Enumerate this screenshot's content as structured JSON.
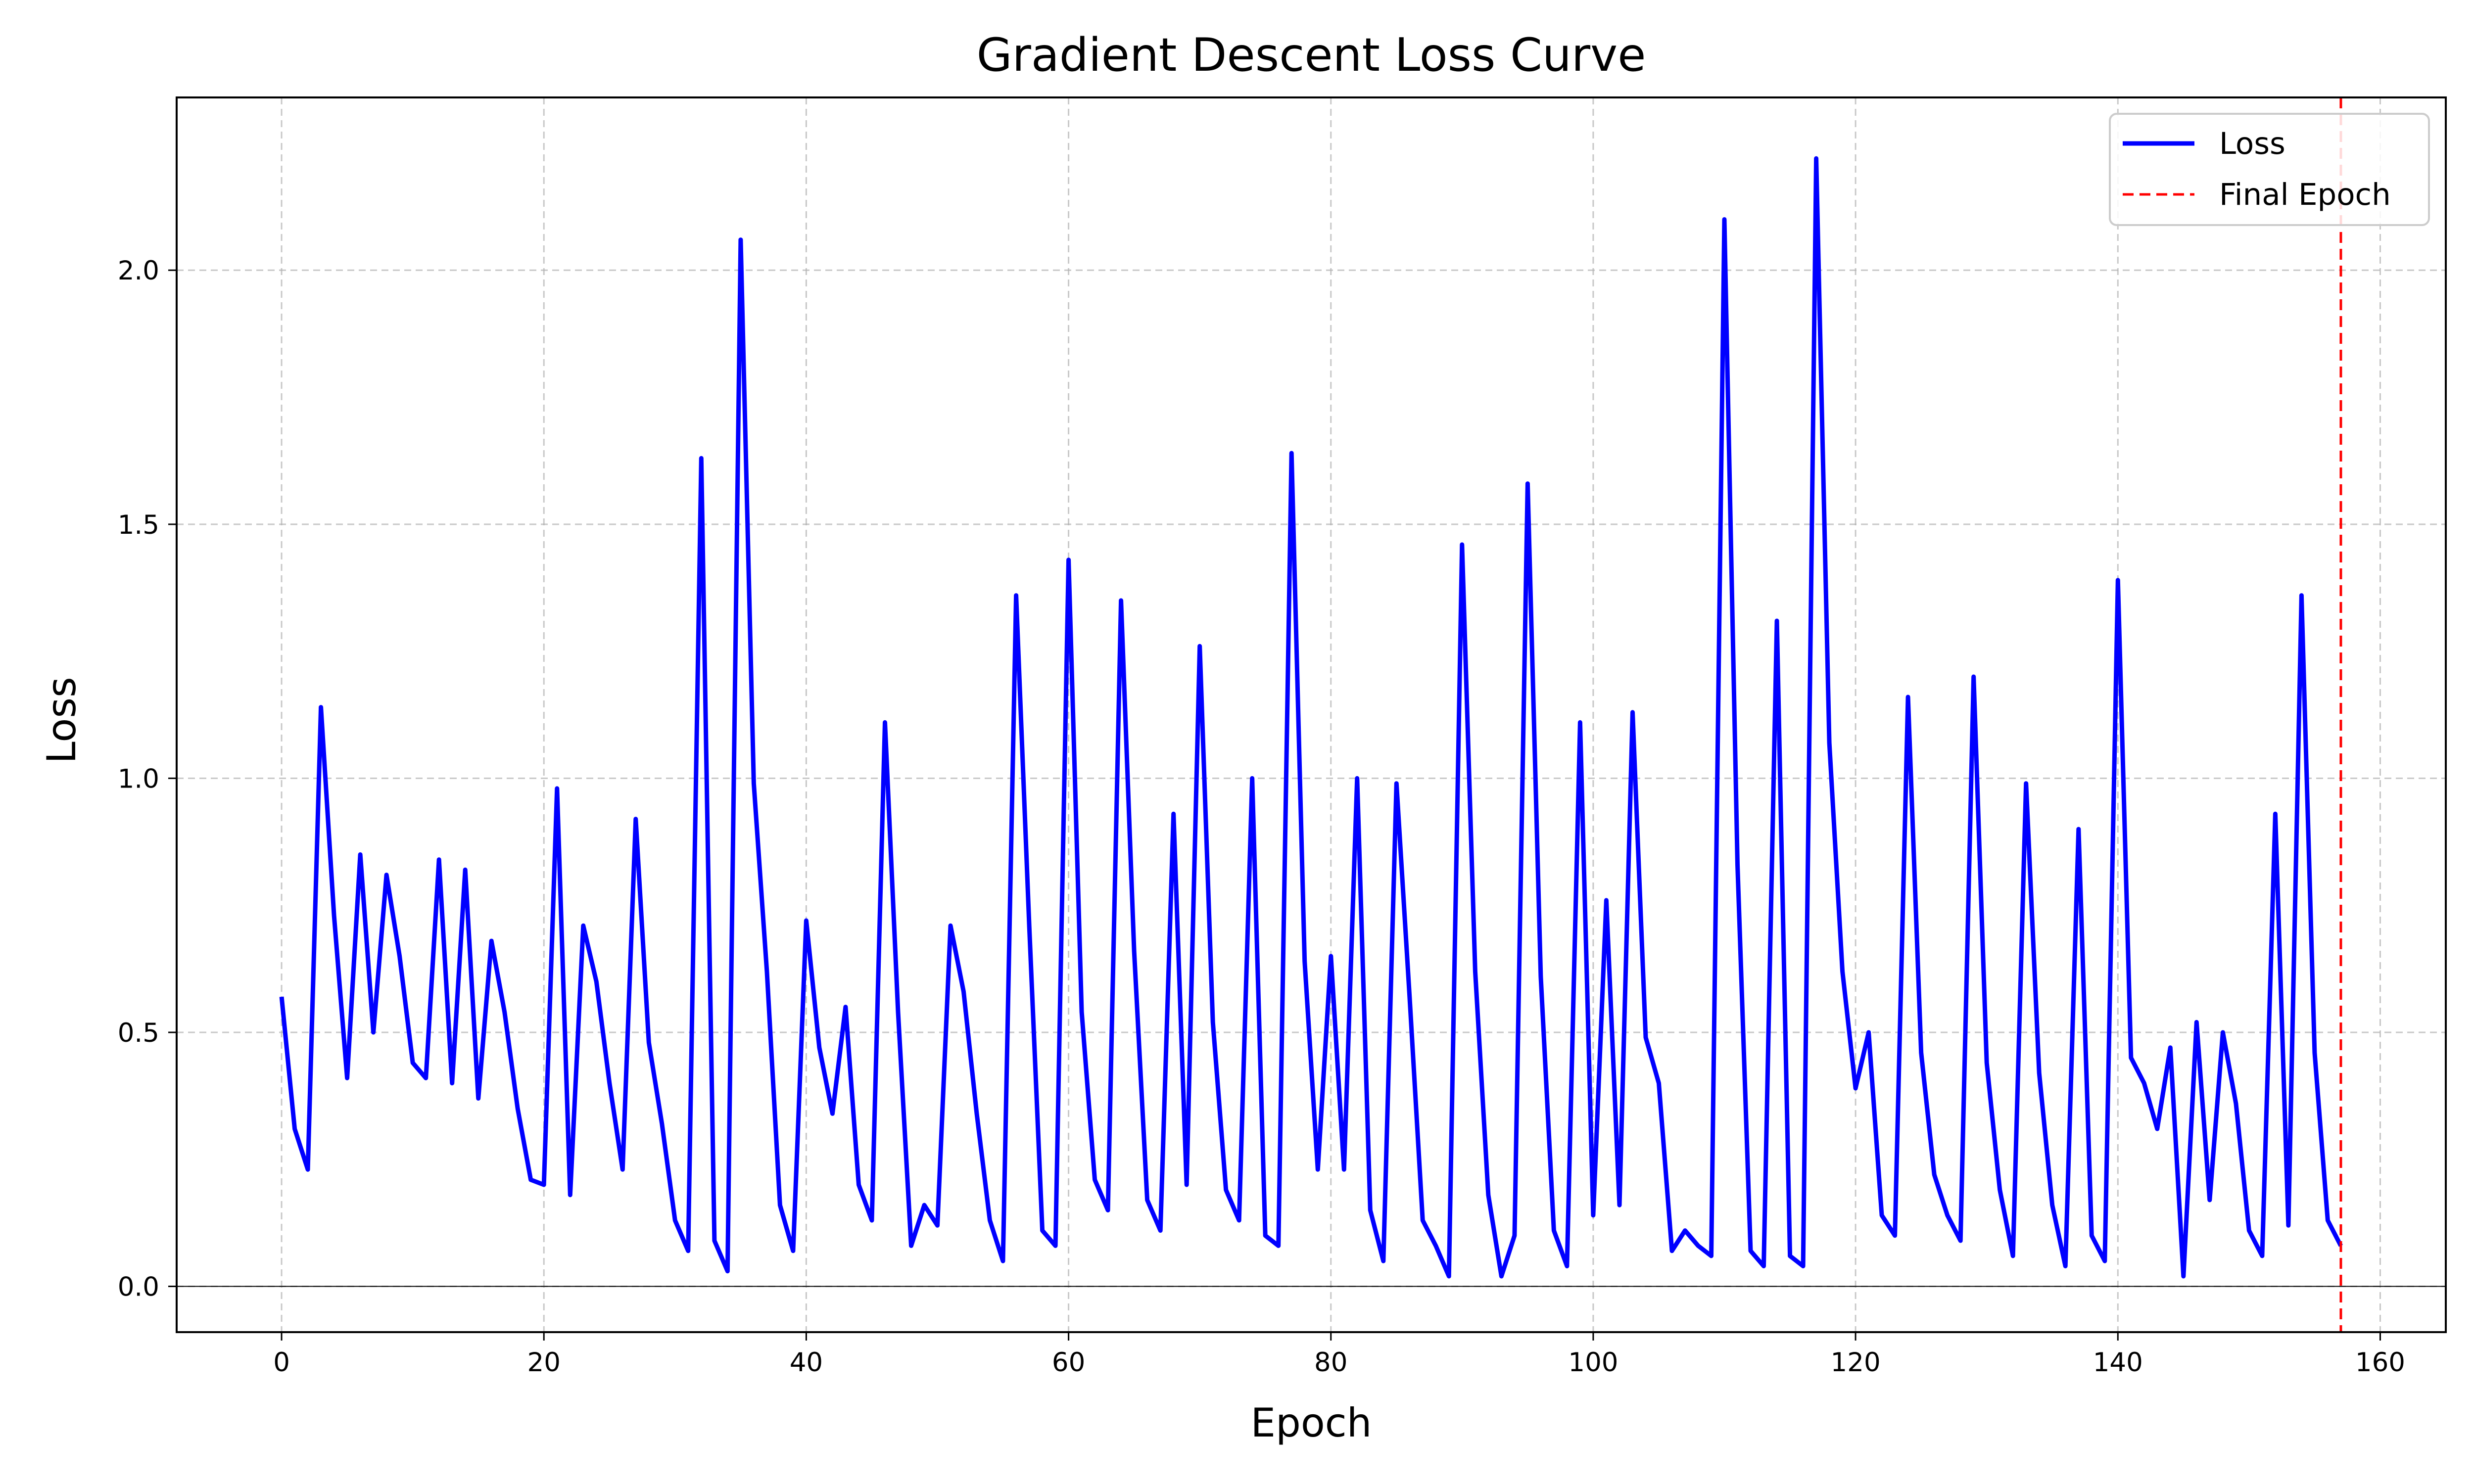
{
  "chart_data": {
    "type": "line",
    "title": "Gradient Descent Loss Curve",
    "xlabel": "Epoch",
    "ylabel": "Loss",
    "xlim": [
      -8,
      165
    ],
    "ylim": [
      -0.09,
      2.34
    ],
    "xticks": [
      0,
      20,
      40,
      60,
      80,
      100,
      120,
      140,
      160
    ],
    "yticks": [
      0.0,
      0.5,
      1.0,
      1.5,
      2.0
    ],
    "xtick_labels": [
      "0",
      "20",
      "40",
      "60",
      "80",
      "100",
      "120",
      "140",
      "160"
    ],
    "ytick_labels": [
      "0.0",
      "0.5",
      "1.0",
      "1.5",
      "2.0"
    ],
    "grid": true,
    "legend_position": "top-right",
    "series": [
      {
        "name": "Loss",
        "color": "#0000ff",
        "style": "solid",
        "x": [
          0,
          1,
          2,
          3,
          4,
          5,
          6,
          7,
          8,
          9,
          10,
          11,
          12,
          13,
          14,
          15,
          16,
          17,
          18,
          19,
          20,
          21,
          22,
          23,
          24,
          25,
          26,
          27,
          28,
          29,
          30,
          31,
          32,
          33,
          34,
          35,
          36,
          37,
          38,
          39,
          40,
          41,
          42,
          43,
          44,
          45,
          46,
          47,
          48,
          49,
          50,
          51,
          52,
          53,
          54,
          55,
          56,
          57,
          58,
          59,
          60,
          61,
          62,
          63,
          64,
          65,
          66,
          67,
          68,
          69,
          70,
          71,
          72,
          73,
          74,
          75,
          76,
          77,
          78,
          79,
          80,
          81,
          82,
          83,
          84,
          85,
          86,
          87,
          88,
          89,
          90,
          91,
          92,
          93,
          94,
          95,
          96,
          97,
          98,
          99,
          100,
          101,
          102,
          103,
          104,
          105,
          106,
          107,
          108,
          109,
          110,
          111,
          112,
          113,
          114,
          115,
          116,
          117,
          118,
          119,
          120,
          121,
          122,
          123,
          124,
          125,
          126,
          127,
          128,
          129,
          130,
          131,
          132,
          133,
          134,
          135,
          136,
          137,
          138,
          139,
          140,
          141,
          142,
          143,
          144,
          145,
          146,
          147,
          148,
          149,
          150,
          151,
          152,
          153,
          154,
          155,
          156,
          157
        ],
        "y": [
          0.57,
          0.31,
          0.23,
          1.14,
          0.73,
          0.41,
          0.85,
          0.5,
          0.81,
          0.65,
          0.44,
          0.41,
          0.84,
          0.4,
          0.82,
          0.37,
          0.68,
          0.54,
          0.35,
          0.21,
          0.2,
          0.98,
          0.18,
          0.71,
          0.6,
          0.4,
          0.23,
          0.92,
          0.48,
          0.32,
          0.13,
          0.07,
          1.63,
          0.09,
          0.03,
          2.06,
          0.99,
          0.62,
          0.16,
          0.07,
          0.72,
          0.47,
          0.34,
          0.55,
          0.2,
          0.13,
          1.11,
          0.54,
          0.08,
          0.16,
          0.12,
          0.71,
          0.58,
          0.34,
          0.13,
          0.05,
          1.36,
          0.71,
          0.11,
          0.08,
          1.43,
          0.54,
          0.21,
          0.15,
          1.35,
          0.66,
          0.17,
          0.11,
          0.93,
          0.2,
          1.26,
          0.52,
          0.19,
          0.13,
          1.0,
          0.1,
          0.08,
          1.64,
          0.64,
          0.23,
          0.65,
          0.23,
          1.0,
          0.15,
          0.05,
          0.99,
          0.57,
          0.13,
          0.08,
          0.02,
          1.46,
          0.62,
          0.18,
          0.02,
          0.1,
          1.58,
          0.61,
          0.11,
          0.04,
          1.11,
          0.14,
          0.76,
          0.16,
          1.13,
          0.49,
          0.4,
          0.07,
          0.11,
          0.08,
          0.06,
          2.1,
          0.83,
          0.07,
          0.04,
          1.31,
          0.06,
          0.04,
          2.22,
          1.07,
          0.62,
          0.39,
          0.5,
          0.14,
          0.1,
          1.16,
          0.46,
          0.22,
          0.14,
          0.09,
          1.2,
          0.44,
          0.19,
          0.06,
          0.99,
          0.42,
          0.16,
          0.04,
          0.9,
          0.1,
          0.05,
          1.39,
          0.45,
          0.4,
          0.31,
          0.47,
          0.02,
          0.52,
          0.17,
          0.5,
          0.36,
          0.11,
          0.06,
          0.93,
          0.12,
          1.36,
          0.46,
          0.13,
          0.08
        ]
      },
      {
        "name": "Final Epoch",
        "color": "#ff0000",
        "style": "dashed",
        "x": 157
      }
    ]
  }
}
